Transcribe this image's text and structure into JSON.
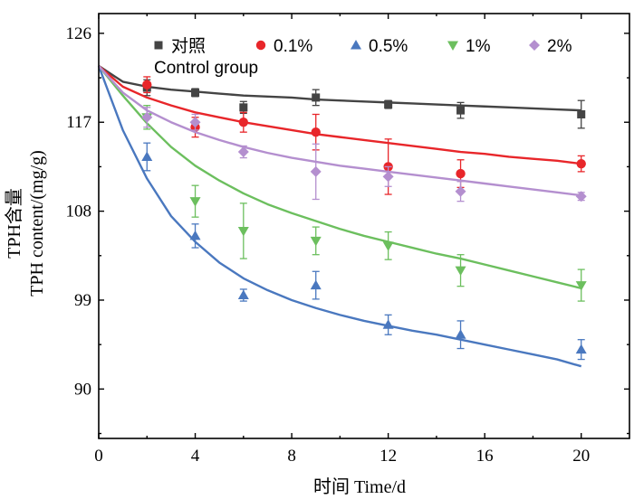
{
  "chart_data": {
    "type": "scatter",
    "title": "",
    "xlabel": "时间 Time/d",
    "ylabel_cn": "TPH含量",
    "ylabel_en": "TPH content/(mg/g)",
    "xlim": [
      0,
      22
    ],
    "ylim": [
      85,
      128
    ],
    "xticks": [
      0,
      4,
      8,
      12,
      16,
      20
    ],
    "yticks": [
      90,
      99,
      108,
      117,
      126
    ],
    "legend_position": "top",
    "x": [
      2,
      4,
      6,
      9,
      12,
      15,
      20
    ],
    "series": [
      {
        "name": "对照",
        "subname": "Control group",
        "color": "#444444",
        "marker": "square",
        "values": [
          120.5,
          120.0,
          118.5,
          119.5,
          118.8,
          118.2,
          117.8
        ],
        "errors": [
          0.8,
          0.4,
          0.6,
          0.8,
          0.4,
          0.8,
          1.4
        ],
        "fit_x": [
          0,
          1,
          2,
          3,
          4,
          5,
          6,
          7,
          8,
          9,
          10,
          11,
          12,
          13,
          14,
          15,
          16,
          17,
          18,
          19,
          20
        ],
        "fit_y": [
          122.7,
          121.1,
          120.6,
          120.3,
          120.1,
          119.9,
          119.7,
          119.6,
          119.5,
          119.3,
          119.2,
          119.1,
          119.0,
          118.9,
          118.8,
          118.7,
          118.6,
          118.5,
          118.4,
          118.3,
          118.2
        ]
      },
      {
        "name": "0.1%",
        "subname": "",
        "color": "#e8262a",
        "marker": "circle",
        "values": [
          120.8,
          116.5,
          117.0,
          116.0,
          112.5,
          111.8,
          112.8
        ],
        "errors": [
          0.8,
          1.0,
          1.0,
          1.8,
          2.8,
          1.4,
          0.8
        ],
        "fit_x": [
          0,
          1,
          2,
          3,
          4,
          5,
          6,
          7,
          8,
          9,
          10,
          11,
          12,
          13,
          14,
          15,
          16,
          17,
          18,
          19,
          20
        ],
        "fit_y": [
          122.7,
          120.6,
          119.5,
          118.7,
          118.0,
          117.5,
          117.0,
          116.6,
          116.2,
          115.8,
          115.5,
          115.2,
          114.9,
          114.6,
          114.3,
          114.0,
          113.8,
          113.5,
          113.3,
          113.1,
          112.8
        ]
      },
      {
        "name": "0.5%",
        "subname": "",
        "color": "#4a78bf",
        "marker": "triangle-up",
        "values": [
          113.5,
          105.5,
          99.5,
          100.5,
          96.5,
          95.5,
          94.0
        ],
        "errors": [
          1.4,
          1.2,
          0.6,
          1.4,
          1.0,
          1.4,
          1.0
        ],
        "fit_x": [
          0,
          1,
          2,
          3,
          4,
          5,
          6,
          7,
          8,
          9,
          10,
          11,
          12,
          13,
          14,
          15,
          16,
          17,
          18,
          19,
          20
        ],
        "fit_y": [
          122.7,
          116.2,
          111.3,
          107.5,
          104.9,
          102.8,
          101.2,
          100.0,
          99.0,
          98.2,
          97.5,
          96.9,
          96.4,
          95.9,
          95.5,
          95.0,
          94.5,
          94.0,
          93.5,
          93.0,
          92.3
        ]
      },
      {
        "name": "1%",
        "subname": "",
        "color": "#6cbf5e",
        "marker": "triangle-down",
        "values": [
          117.5,
          109.0,
          106.0,
          105.0,
          104.5,
          102.0,
          100.5
        ],
        "errors": [
          1.2,
          1.6,
          2.8,
          1.4,
          1.4,
          1.6,
          1.6
        ],
        "fit_x": [
          0,
          1,
          2,
          3,
          4,
          5,
          6,
          7,
          8,
          9,
          10,
          11,
          12,
          13,
          14,
          15,
          16,
          17,
          18,
          19,
          20
        ],
        "fit_y": [
          122.7,
          119.7,
          116.9,
          114.5,
          112.6,
          111.1,
          109.8,
          108.7,
          107.8,
          107.0,
          106.2,
          105.5,
          104.9,
          104.3,
          103.7,
          103.2,
          102.6,
          102.0,
          101.4,
          100.8,
          100.2
        ]
      },
      {
        "name": "2%",
        "subname": "",
        "color": "#b48fcf",
        "marker": "diamond",
        "values": [
          117.5,
          117.0,
          114.0,
          112.0,
          111.5,
          110.0,
          109.5
        ],
        "errors": [
          1.0,
          0.8,
          0.6,
          2.8,
          1.0,
          1.0,
          0.4
        ],
        "fit_x": [
          0,
          1,
          2,
          3,
          4,
          5,
          6,
          7,
          8,
          9,
          10,
          11,
          12,
          13,
          14,
          15,
          16,
          17,
          18,
          19,
          20
        ],
        "fit_y": [
          122.7,
          120.0,
          118.2,
          117.0,
          116.0,
          115.2,
          114.5,
          113.9,
          113.4,
          113.0,
          112.6,
          112.3,
          112.0,
          111.7,
          111.4,
          111.1,
          110.8,
          110.5,
          110.2,
          109.9,
          109.6
        ]
      }
    ]
  }
}
